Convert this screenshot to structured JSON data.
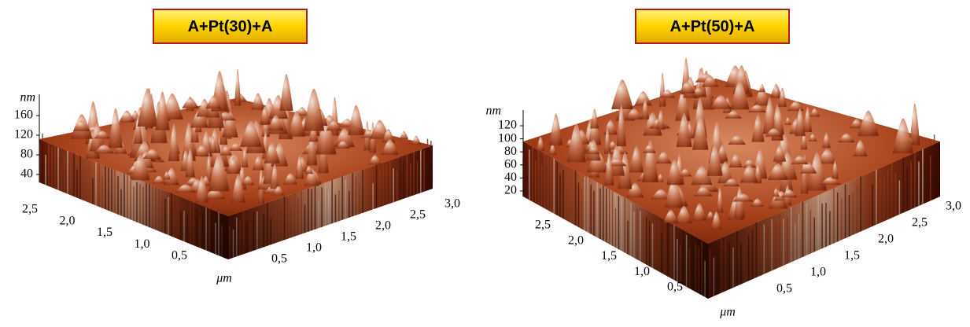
{
  "panels": [
    {
      "title": "A+Pt(30)+A",
      "z_unit": "nm",
      "z_ticks": [
        "160",
        "120",
        "80",
        "40"
      ],
      "left_ticks": [
        "2,5",
        "2,0",
        "1,5",
        "1,0",
        "0,5"
      ],
      "right_ticks": [
        "0,5",
        "1,0",
        "1,5",
        "2,0",
        "2,5",
        "3,0"
      ],
      "unit": "μm"
    },
    {
      "title": "A+Pt(50)+A",
      "z_unit": "nm",
      "z_ticks": [
        "120",
        "100",
        "80",
        "60",
        "40",
        "20"
      ],
      "left_ticks": [
        "2,5",
        "2,0",
        "1,5",
        "1,0",
        "0,5"
      ],
      "right_ticks": [
        "0,5",
        "1,0",
        "1,5",
        "2,0",
        "2,5",
        "3,0"
      ],
      "unit": "μm"
    }
  ]
}
